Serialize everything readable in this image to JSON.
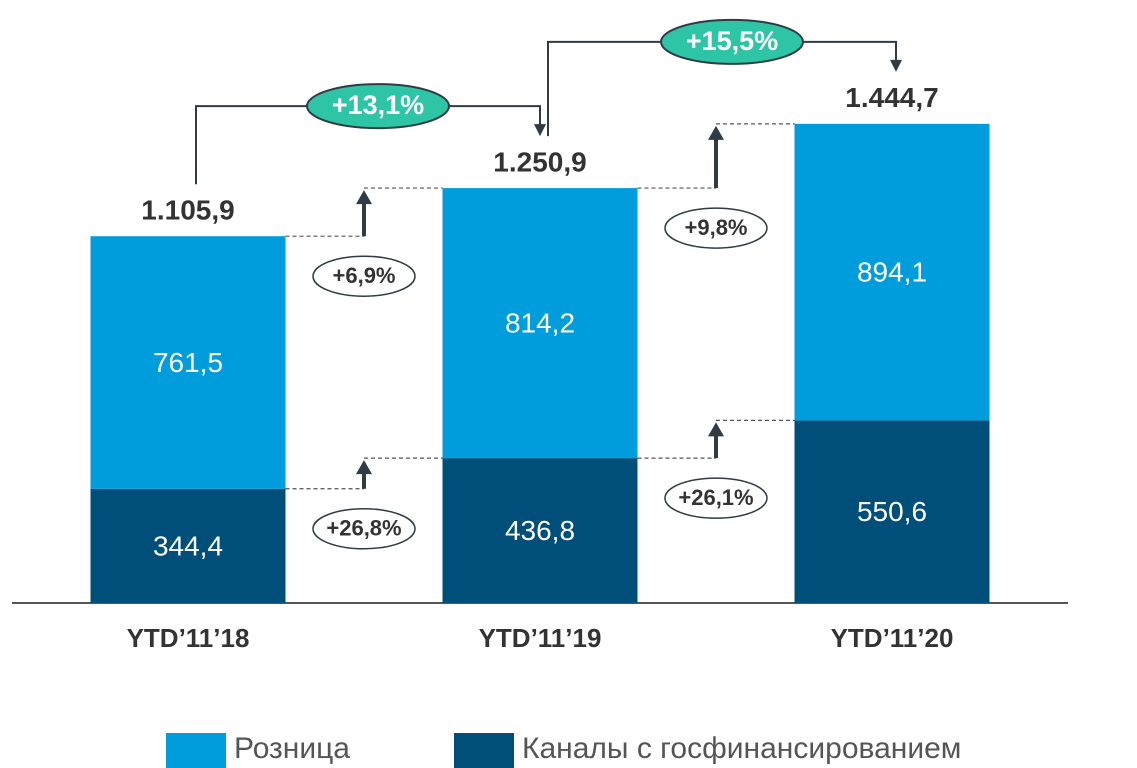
{
  "chart_data": {
    "type": "stacked_bar",
    "categories": [
      "YTD’11’18",
      "YTD’11’19",
      "YTD’11’20"
    ],
    "series": [
      {
        "name": "Розница",
        "color": "#009ddc",
        "values": [
          761.5,
          814.2,
          894.1
        ],
        "value_labels": [
          "761,5",
          "814,2",
          "894,1"
        ]
      },
      {
        "name": "Каналы с госфинансированием",
        "color": "#004e7a",
        "values": [
          344.4,
          436.8,
          550.6
        ],
        "value_labels": [
          "344,4",
          "436,8",
          "550,6"
        ]
      }
    ],
    "totals": [
      1105.9,
      1250.9,
      1444.7
    ],
    "total_labels": [
      "1.105,9",
      "1.250,9",
      "1.444,7"
    ],
    "changes": [
      {
        "total": "+13,1%",
        "series": [
          "+6,9%",
          "+26,8%"
        ]
      },
      {
        "total": "+15,5%",
        "series": [
          "+9,8%",
          "+26,1%"
        ]
      }
    ],
    "ylim": [
      0,
      1800
    ]
  }
}
